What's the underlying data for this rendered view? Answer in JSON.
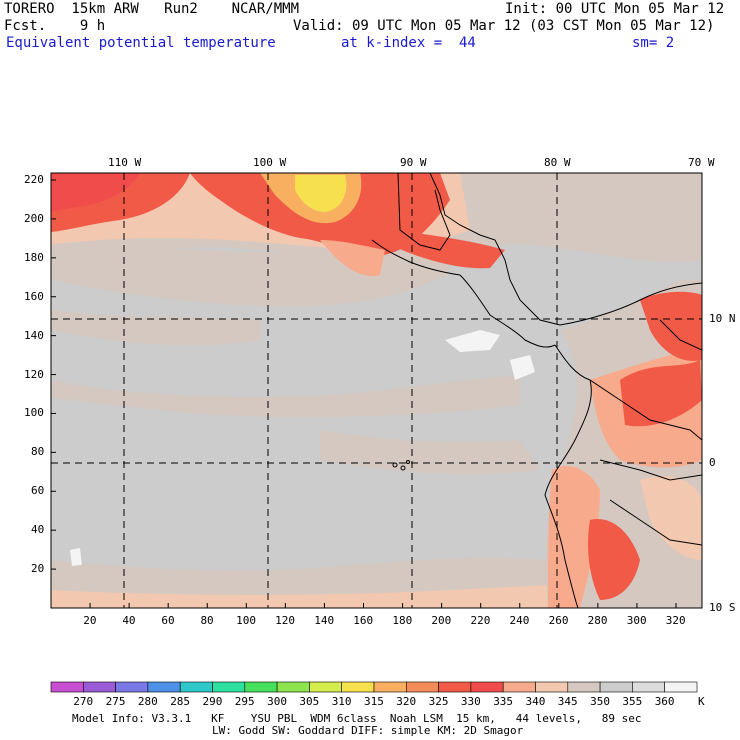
{
  "header": {
    "model": "TORERO  15km ARW   Run2    NCAR/MMM",
    "init": "Init: 00 UTC Mon 05 Mar 12",
    "fcst": "Fcst.    9 h",
    "valid": "Valid: 09 UTC Mon 05 Mar 12 (03 CST Mon 05 Mar 12)",
    "field": "Equivalent potential temperature",
    "level": "at k-index =  44",
    "smoothing": "sm= 2"
  },
  "map": {
    "lon_labels": [
      "110 W",
      "100 W",
      "90 W",
      "80 W",
      "70 W"
    ],
    "lat_labels": [
      "10 N",
      "0",
      "10 S"
    ],
    "y_ticks": [
      "20",
      "40",
      "60",
      "80",
      "100",
      "120",
      "140",
      "160",
      "180",
      "200",
      "220"
    ],
    "x_ticks": [
      "20",
      "40",
      "60",
      "80",
      "100",
      "120",
      "140",
      "160",
      "180",
      "200",
      "220",
      "240",
      "260",
      "280",
      "300",
      "320"
    ]
  },
  "legend": {
    "values": [
      "270",
      "275",
      "280",
      "285",
      "290",
      "295",
      "300",
      "305",
      "310",
      "315",
      "320",
      "325",
      "330",
      "335",
      "340",
      "345",
      "350",
      "355",
      "360"
    ],
    "unit": "K",
    "colors": [
      "#c84ed2",
      "#9a5bd6",
      "#7878e6",
      "#4e8fe8",
      "#2ec8c8",
      "#2ee0a0",
      "#46e05a",
      "#8ee44e",
      "#d4ec4e",
      "#f6e04e",
      "#f8b060",
      "#f48c5a",
      "#f25a48",
      "#f04c4c",
      "#f8aa8c",
      "#f2c8b0",
      "#d4c8c0",
      "#cccccc",
      "#dddddd",
      "#f4f4f4"
    ]
  },
  "footer": {
    "line1": "Model Info: V3.3.1   KF    YSU PBL  WDM 6class  Noah LSM  15 km,   44 levels,   89 sec",
    "line2": "LW: Godd SW: Goddard DIFF: simple KM: 2D Smagor"
  }
}
